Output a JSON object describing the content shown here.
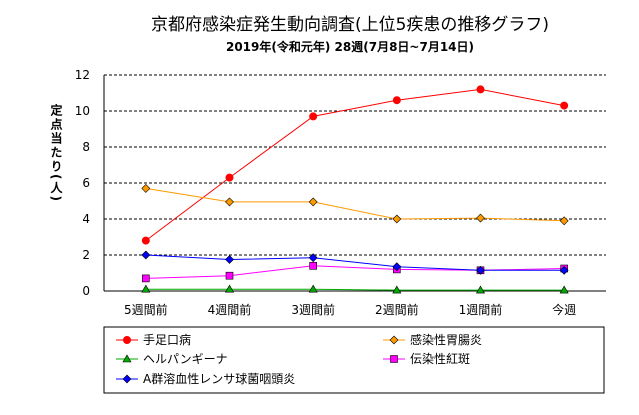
{
  "chart_data": {
    "type": "line",
    "title": "京都府感染症発生動向調査(上位5疾患の推移グラフ)",
    "subtitle": "2019年(令和元年) 28週(7月8日~7月14日)",
    "ylabel": "定点当たり(人)",
    "xlabel": "",
    "categories": [
      "5週間前",
      "4週間前",
      "3週間前",
      "2週間前",
      "1週間前",
      "今週"
    ],
    "ylim": [
      0,
      12
    ],
    "yticks": [
      "0",
      "2",
      "4",
      "6",
      "8",
      "10",
      "12"
    ],
    "grid": true,
    "legend_position": "bottom",
    "series": [
      {
        "name": "手足口病",
        "color": "#ff0000",
        "marker": "circle",
        "values": [
          2.8,
          6.3,
          9.7,
          10.6,
          11.2,
          10.3
        ]
      },
      {
        "name": "感染性胃腸炎",
        "color": "#ff9900",
        "marker": "diamond",
        "values": [
          5.7,
          4.95,
          4.95,
          4.0,
          4.05,
          3.9
        ]
      },
      {
        "name": "ヘルパンギーナ",
        "color": "#00aa00",
        "marker": "triangle",
        "values": [
          0.1,
          0.1,
          0.1,
          0.05,
          0.05,
          0.05
        ]
      },
      {
        "name": "伝染性紅斑",
        "color": "#ff00ff",
        "marker": "square",
        "values": [
          0.7,
          0.85,
          1.4,
          1.2,
          1.15,
          1.25
        ]
      },
      {
        "name": "A群溶血性レンサ球菌咽頭炎",
        "color": "#0000ff",
        "marker": "diamond",
        "values": [
          2.0,
          1.75,
          1.85,
          1.35,
          1.15,
          1.15
        ]
      }
    ]
  }
}
